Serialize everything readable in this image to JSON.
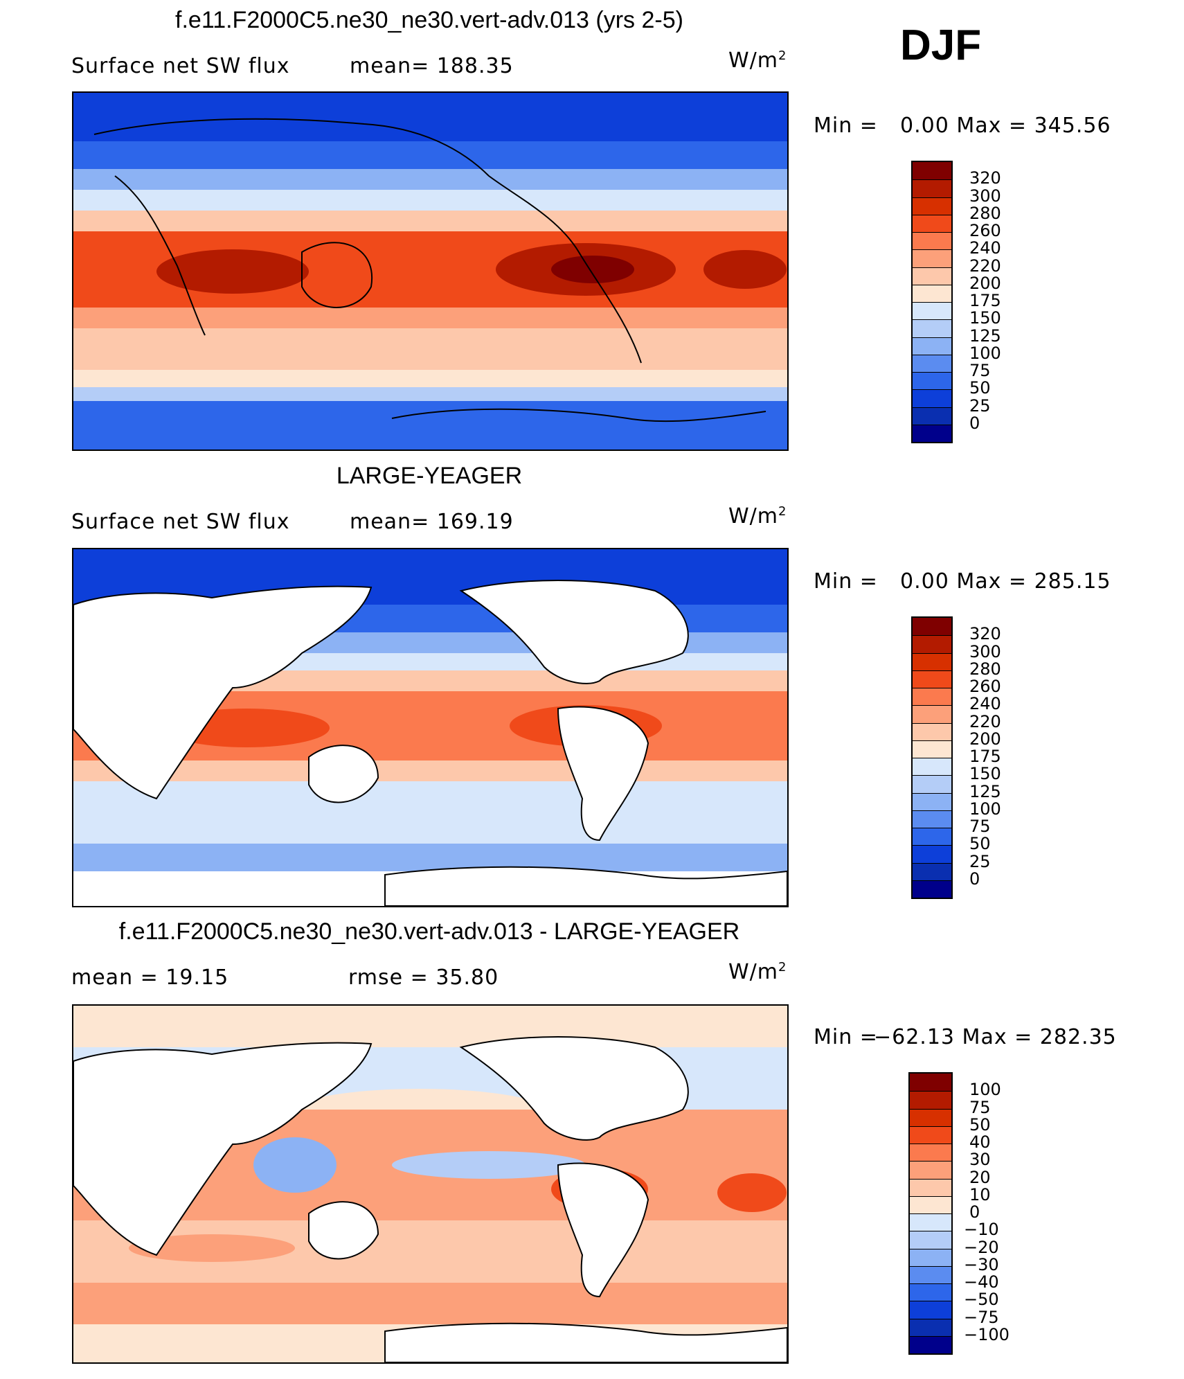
{
  "season": "DJF",
  "panels": [
    {
      "title": "f.e11.F2000C5.ne30_ne30.vert-adv.013 (yrs 2-5)",
      "left_label": "Surface net SW flux",
      "mid_label": "mean= 188.35",
      "units": "W/m",
      "units_sup": "2",
      "minmax_left": "Min =",
      "minmax_right": "0.00 Max = 345.56",
      "colorbar": {
        "labels": [
          "320",
          "300",
          "280",
          "260",
          "240",
          "220",
          "200",
          "175",
          "150",
          "125",
          "100",
          "75",
          "50",
          "25",
          "0"
        ],
        "colors": [
          "#7f0000",
          "#b31b00",
          "#d73000",
          "#f04a1a",
          "#fb7a4e",
          "#fca07a",
          "#fdc8ab",
          "#fde6d2",
          "#d7e7fb",
          "#b4cdf7",
          "#8cb2f4",
          "#5b8cf0",
          "#2d66ea",
          "#0d3fd9",
          "#0a2fb0",
          "#00008b"
        ]
      },
      "has_land": false
    },
    {
      "title": "LARGE-YEAGER",
      "left_label": "Surface net SW flux",
      "mid_label": "mean= 169.19",
      "units": "W/m",
      "units_sup": "2",
      "minmax_left": "Min =",
      "minmax_right": "0.00 Max = 285.15",
      "colorbar": {
        "labels": [
          "320",
          "300",
          "280",
          "260",
          "240",
          "220",
          "200",
          "175",
          "150",
          "125",
          "100",
          "75",
          "50",
          "25",
          "0"
        ],
        "colors": [
          "#7f0000",
          "#b31b00",
          "#d73000",
          "#f04a1a",
          "#fb7a4e",
          "#fca07a",
          "#fdc8ab",
          "#fde6d2",
          "#d7e7fb",
          "#b4cdf7",
          "#8cb2f4",
          "#5b8cf0",
          "#2d66ea",
          "#0d3fd9",
          "#0a2fb0",
          "#00008b"
        ]
      },
      "has_land": true
    },
    {
      "title": "f.e11.F2000C5.ne30_ne30.vert-adv.013 - LARGE-YEAGER",
      "left_label": "mean = 19.15",
      "mid_label": "rmse = 35.80",
      "units": "W/m",
      "units_sup": "2",
      "minmax_left": "Min =",
      "minmax_right": "−62.13 Max = 282.35",
      "colorbar": {
        "labels": [
          "100",
          "75",
          "50",
          "40",
          "30",
          "20",
          "10",
          "0",
          "−10",
          "−20",
          "−30",
          "−40",
          "−50",
          "−75",
          "−100"
        ],
        "colors": [
          "#7f0000",
          "#b31b00",
          "#d73000",
          "#f04a1a",
          "#fb7a4e",
          "#fca07a",
          "#fdc8ab",
          "#fde6d2",
          "#d7e7fb",
          "#b4cdf7",
          "#8cb2f4",
          "#5b8cf0",
          "#2d66ea",
          "#0d3fd9",
          "#0a2fb0",
          "#00008b"
        ]
      },
      "has_land": true
    }
  ]
}
